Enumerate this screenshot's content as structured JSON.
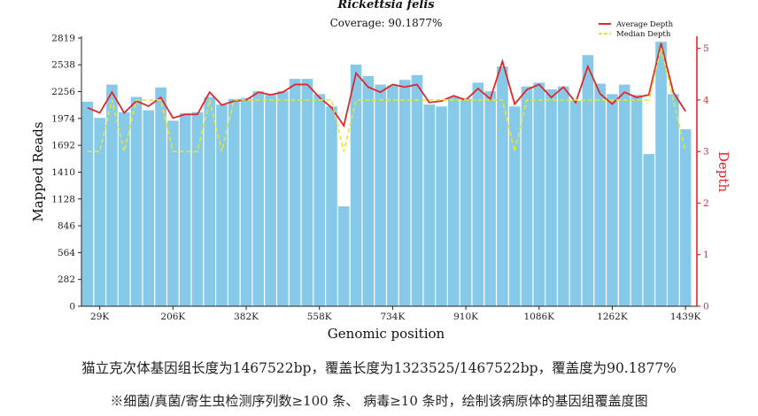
{
  "chart_data": {
    "type": "bar",
    "title": "Rickettsia felis",
    "subtitle": "Coverage: 90.1877%",
    "xlabel": "Genomic position",
    "ylabel": "Mapped Reads",
    "y2label": "Depth",
    "ylim": [
      0,
      2819
    ],
    "y2lim": [
      0,
      5.2
    ],
    "yticks": [
      "0",
      "282",
      "564",
      "846",
      "1128",
      "1410",
      "1692",
      "1974",
      "2256",
      "2538",
      "2819"
    ],
    "y2ticks": [
      "0",
      "1",
      "2",
      "3",
      "4",
      "5"
    ],
    "xticks": [
      "29K",
      "206K",
      "382K",
      "558K",
      "734K",
      "910K",
      "1086K",
      "1262K",
      "1439K"
    ],
    "xticks_position": [
      1,
      7,
      13,
      19,
      25,
      31,
      37,
      43,
      49
    ],
    "grid": false,
    "legend_position": "top-right",
    "values": [
      2150,
      1980,
      2330,
      2040,
      2200,
      2060,
      2300,
      1950,
      2030,
      2040,
      2200,
      2120,
      2180,
      2190,
      2260,
      2230,
      2260,
      2390,
      2390,
      2230,
      2100,
      1050,
      2540,
      2420,
      2330,
      2320,
      2380,
      2430,
      2120,
      2100,
      2200,
      2180,
      2350,
      2260,
      2520,
      2100,
      2310,
      2350,
      2280,
      2310,
      2160,
      2640,
      2340,
      2230,
      2330,
      2220,
      1600,
      2780,
      2230,
      1860
    ],
    "series": [
      {
        "name": "Average Depth",
        "color": "#e3262b",
        "values": [
          3.85,
          3.75,
          4.15,
          3.75,
          3.98,
          3.88,
          4.05,
          3.65,
          3.72,
          3.72,
          4.15,
          3.9,
          3.98,
          4.0,
          4.15,
          4.1,
          4.15,
          4.3,
          4.3,
          4.05,
          3.85,
          3.5,
          4.52,
          4.25,
          4.15,
          4.3,
          4.25,
          4.3,
          3.95,
          3.98,
          4.08,
          4.0,
          4.22,
          4.02,
          4.75,
          3.92,
          4.2,
          4.3,
          4.05,
          4.25,
          3.95,
          4.65,
          4.12,
          3.92,
          4.15,
          4.05,
          4.1,
          5.1,
          4.15,
          3.78
        ]
      },
      {
        "name": "Median  Depth",
        "color": "#e6e62e",
        "values": [
          3.0,
          3.0,
          4.0,
          3.0,
          4.0,
          4.0,
          4.0,
          3.0,
          3.0,
          3.0,
          4.0,
          3.0,
          4.0,
          4.0,
          4.0,
          4.0,
          4.0,
          4.0,
          4.0,
          4.0,
          4.0,
          3.0,
          4.0,
          4.0,
          4.0,
          4.0,
          4.0,
          4.0,
          4.0,
          4.0,
          4.0,
          4.0,
          4.0,
          4.0,
          4.0,
          3.0,
          4.0,
          4.0,
          4.0,
          4.0,
          4.0,
          4.0,
          4.0,
          4.0,
          4.0,
          4.0,
          4.0,
          5.0,
          4.0,
          3.0
        ]
      }
    ],
    "bar_color": "#87c9e8",
    "axis_color": "#e3262b"
  },
  "caption1": "猫立克次体基因组长度为1467522bp，覆盖长度为1323525/1467522bp，覆盖度为90.1877%",
  "caption2": "※细菌/真菌/寄生虫检测序列数≥100 条、 病毒≥10 条时，绘制该病原体的基因组覆盖度图"
}
